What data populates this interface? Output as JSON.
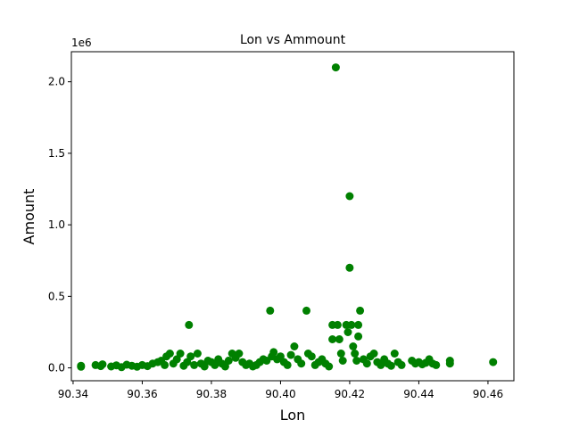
{
  "chart_data": {
    "type": "scatter",
    "title": "Lon vs Ammount",
    "xlabel": "Lon",
    "ylabel": "Amount",
    "y_offset_label": "1e6",
    "xlim": [
      90.3395,
      90.4675
    ],
    "ylim": [
      -90000,
      2210000
    ],
    "grid": false,
    "marker_color": "#008000",
    "x_ticks": [
      90.34,
      90.36,
      90.38,
      90.4,
      90.42,
      90.44,
      90.46
    ],
    "x_tick_labels": [
      "90.34",
      "90.36",
      "90.38",
      "90.40",
      "90.42",
      "90.44",
      "90.46"
    ],
    "y_ticks": [
      0,
      500000,
      1000000,
      1500000,
      2000000
    ],
    "y_tick_labels": [
      "0.0",
      "0.5",
      "1.0",
      "1.5",
      "2.0"
    ],
    "series": [
      {
        "points": [
          [
            90.3423,
            15000
          ],
          [
            90.3423,
            8000
          ],
          [
            90.3465,
            20000
          ],
          [
            90.348,
            12000
          ],
          [
            90.3485,
            25000
          ],
          [
            90.351,
            10000
          ],
          [
            90.3525,
            18000
          ],
          [
            90.354,
            5000
          ],
          [
            90.3555,
            22000
          ],
          [
            90.357,
            15000
          ],
          [
            90.3585,
            8000
          ],
          [
            90.36,
            20000
          ],
          [
            90.3615,
            12000
          ],
          [
            90.363,
            30000
          ],
          [
            90.3645,
            40000
          ],
          [
            90.3655,
            50000
          ],
          [
            90.3665,
            20000
          ],
          [
            90.367,
            80000
          ],
          [
            90.368,
            100000
          ],
          [
            90.369,
            30000
          ],
          [
            90.37,
            60000
          ],
          [
            90.371,
            100000
          ],
          [
            90.372,
            15000
          ],
          [
            90.373,
            40000
          ],
          [
            90.3735,
            300000
          ],
          [
            90.374,
            80000
          ],
          [
            90.375,
            20000
          ],
          [
            90.376,
            100000
          ],
          [
            90.377,
            30000
          ],
          [
            90.378,
            10000
          ],
          [
            90.379,
            50000
          ],
          [
            90.38,
            40000
          ],
          [
            90.381,
            20000
          ],
          [
            90.382,
            60000
          ],
          [
            90.383,
            30000
          ],
          [
            90.384,
            10000
          ],
          [
            90.385,
            50000
          ],
          [
            90.386,
            100000
          ],
          [
            90.387,
            70000
          ],
          [
            90.388,
            100000
          ],
          [
            90.389,
            40000
          ],
          [
            90.39,
            20000
          ],
          [
            90.391,
            30000
          ],
          [
            90.392,
            10000
          ],
          [
            90.393,
            20000
          ],
          [
            90.394,
            40000
          ],
          [
            90.395,
            60000
          ],
          [
            90.396,
            50000
          ],
          [
            90.397,
            400000
          ],
          [
            90.3975,
            80000
          ],
          [
            90.398,
            110000
          ],
          [
            90.399,
            60000
          ],
          [
            90.4,
            80000
          ],
          [
            90.401,
            40000
          ],
          [
            90.402,
            20000
          ],
          [
            90.403,
            90000
          ],
          [
            90.404,
            150000
          ],
          [
            90.405,
            60000
          ],
          [
            90.406,
            30000
          ],
          [
            90.4075,
            400000
          ],
          [
            90.408,
            100000
          ],
          [
            90.409,
            80000
          ],
          [
            90.41,
            20000
          ],
          [
            90.411,
            40000
          ],
          [
            90.412,
            60000
          ],
          [
            90.413,
            30000
          ],
          [
            90.414,
            10000
          ],
          [
            90.415,
            300000
          ],
          [
            90.415,
            200000
          ],
          [
            90.416,
            2100000
          ],
          [
            90.4165,
            300000
          ],
          [
            90.417,
            200000
          ],
          [
            90.4175,
            100000
          ],
          [
            90.418,
            50000
          ],
          [
            90.419,
            300000
          ],
          [
            90.4195,
            250000
          ],
          [
            90.42,
            1200000
          ],
          [
            90.42,
            700000
          ],
          [
            90.4205,
            300000
          ],
          [
            90.421,
            150000
          ],
          [
            90.4215,
            100000
          ],
          [
            90.422,
            50000
          ],
          [
            90.4225,
            300000
          ],
          [
            90.4225,
            220000
          ],
          [
            90.423,
            400000
          ],
          [
            90.424,
            60000
          ],
          [
            90.425,
            30000
          ],
          [
            90.426,
            80000
          ],
          [
            90.427,
            100000
          ],
          [
            90.428,
            40000
          ],
          [
            90.429,
            20000
          ],
          [
            90.43,
            60000
          ],
          [
            90.431,
            30000
          ],
          [
            90.432,
            15000
          ],
          [
            90.433,
            100000
          ],
          [
            90.434,
            40000
          ],
          [
            90.435,
            20000
          ],
          [
            90.438,
            50000
          ],
          [
            90.439,
            30000
          ],
          [
            90.44,
            40000
          ],
          [
            90.441,
            25000
          ],
          [
            90.442,
            35000
          ],
          [
            90.443,
            60000
          ],
          [
            90.444,
            30000
          ],
          [
            90.445,
            20000
          ],
          [
            90.449,
            50000
          ],
          [
            90.449,
            30000
          ],
          [
            90.4615,
            40000
          ]
        ]
      }
    ]
  }
}
